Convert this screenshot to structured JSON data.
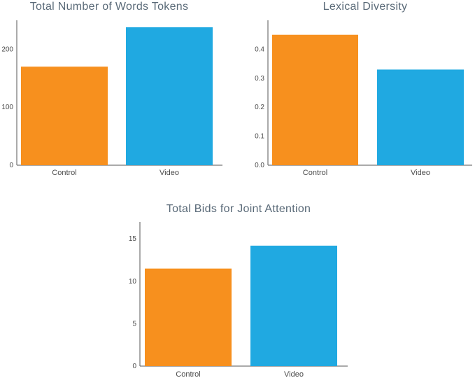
{
  "colors": {
    "control": "#F7901E",
    "video": "#20A9E1"
  },
  "chart_data": [
    {
      "type": "bar",
      "title": "Total Number of Words Tokens",
      "categories": [
        "Control",
        "Video"
      ],
      "values": [
        170,
        238
      ],
      "ylim": [
        0,
        250
      ],
      "yticks": [
        "0",
        "100",
        "200"
      ],
      "ytick_values": [
        0,
        100,
        200
      ],
      "xlabel": "",
      "ylabel": "",
      "grid": false
    },
    {
      "type": "bar",
      "title": "Lexical Diversity",
      "categories": [
        "Control",
        "Video"
      ],
      "values": [
        0.45,
        0.33
      ],
      "ylim": [
        0,
        0.5
      ],
      "yticks": [
        "0.0",
        "0.1",
        "0.2",
        "0.3",
        "0.4"
      ],
      "ytick_values": [
        0,
        0.1,
        0.2,
        0.3,
        0.4
      ],
      "xlabel": "",
      "ylabel": "",
      "grid": false
    },
    {
      "type": "bar",
      "title": "Total Bids for Joint Attention",
      "categories": [
        "Control",
        "Video"
      ],
      "values": [
        11.5,
        14.2
      ],
      "ylim": [
        0,
        17
      ],
      "yticks": [
        "0",
        "5",
        "10",
        "15"
      ],
      "ytick_values": [
        0,
        5,
        10,
        15
      ],
      "xlabel": "",
      "ylabel": "",
      "grid": false
    }
  ]
}
